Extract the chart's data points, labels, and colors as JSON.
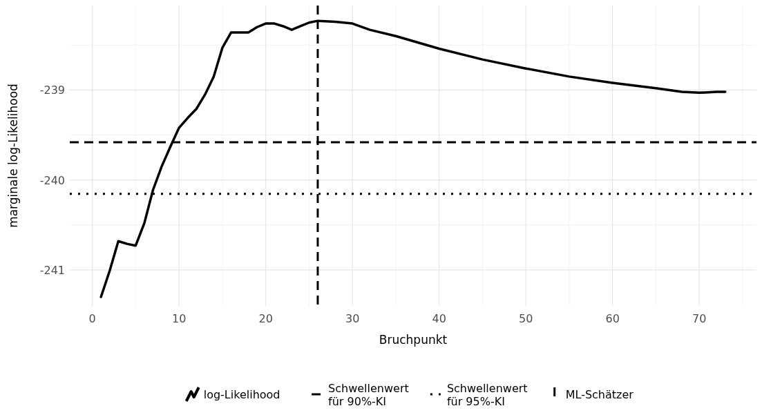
{
  "chart_data": {
    "type": "line",
    "xlabel": "Bruchpunkt",
    "ylabel": "marginale log-Likelihood",
    "x": [
      1,
      2,
      3,
      4,
      5,
      6,
      7,
      8,
      9,
      10,
      11,
      12,
      13,
      14,
      15,
      16,
      17,
      18,
      19,
      20,
      21,
      22,
      23,
      24,
      25,
      26,
      28,
      30,
      32,
      35,
      40,
      45,
      50,
      55,
      60,
      65,
      68,
      70,
      72,
      73
    ],
    "series": [
      {
        "name": "log-Likelihood",
        "color": "#000000",
        "line_style": "solid",
        "values": [
          -241.3,
          -241.01,
          -240.68,
          -240.71,
          -240.73,
          -240.48,
          -240.11,
          -239.85,
          -239.63,
          -239.42,
          -239.31,
          -239.21,
          -239.05,
          -238.85,
          -238.53,
          -238.36,
          -238.36,
          -238.36,
          -238.3,
          -238.26,
          -238.26,
          -238.29,
          -238.33,
          -238.29,
          -238.25,
          -238.23,
          -238.24,
          -238.26,
          -238.33,
          -238.4,
          -238.54,
          -238.66,
          -238.76,
          -238.85,
          -238.92,
          -238.98,
          -239.02,
          -239.03,
          -239.02,
          -239.02
        ]
      }
    ],
    "ref_lines": [
      {
        "axis": "y",
        "value": -239.58,
        "label": "Schwellenwert für 90%-KI",
        "color": "#000000",
        "line_style": "dashed"
      },
      {
        "axis": "y",
        "value": -240.155,
        "label": "Schwellenwert für 95%-KI",
        "color": "#000000",
        "line_style": "dotted"
      },
      {
        "axis": "x",
        "value": 26,
        "label": "ML-Schätzer",
        "color": "#000000",
        "line_style": "dashed"
      }
    ],
    "xlim": [
      -2.6,
      76.6
    ],
    "xticks": [
      0,
      10,
      20,
      30,
      40,
      50,
      60,
      70
    ],
    "ylim": [
      -241.4,
      -238.06
    ],
    "yticks": [
      -241,
      -240,
      -239
    ],
    "grid": true,
    "legend": "bottom",
    "marker": "none"
  }
}
